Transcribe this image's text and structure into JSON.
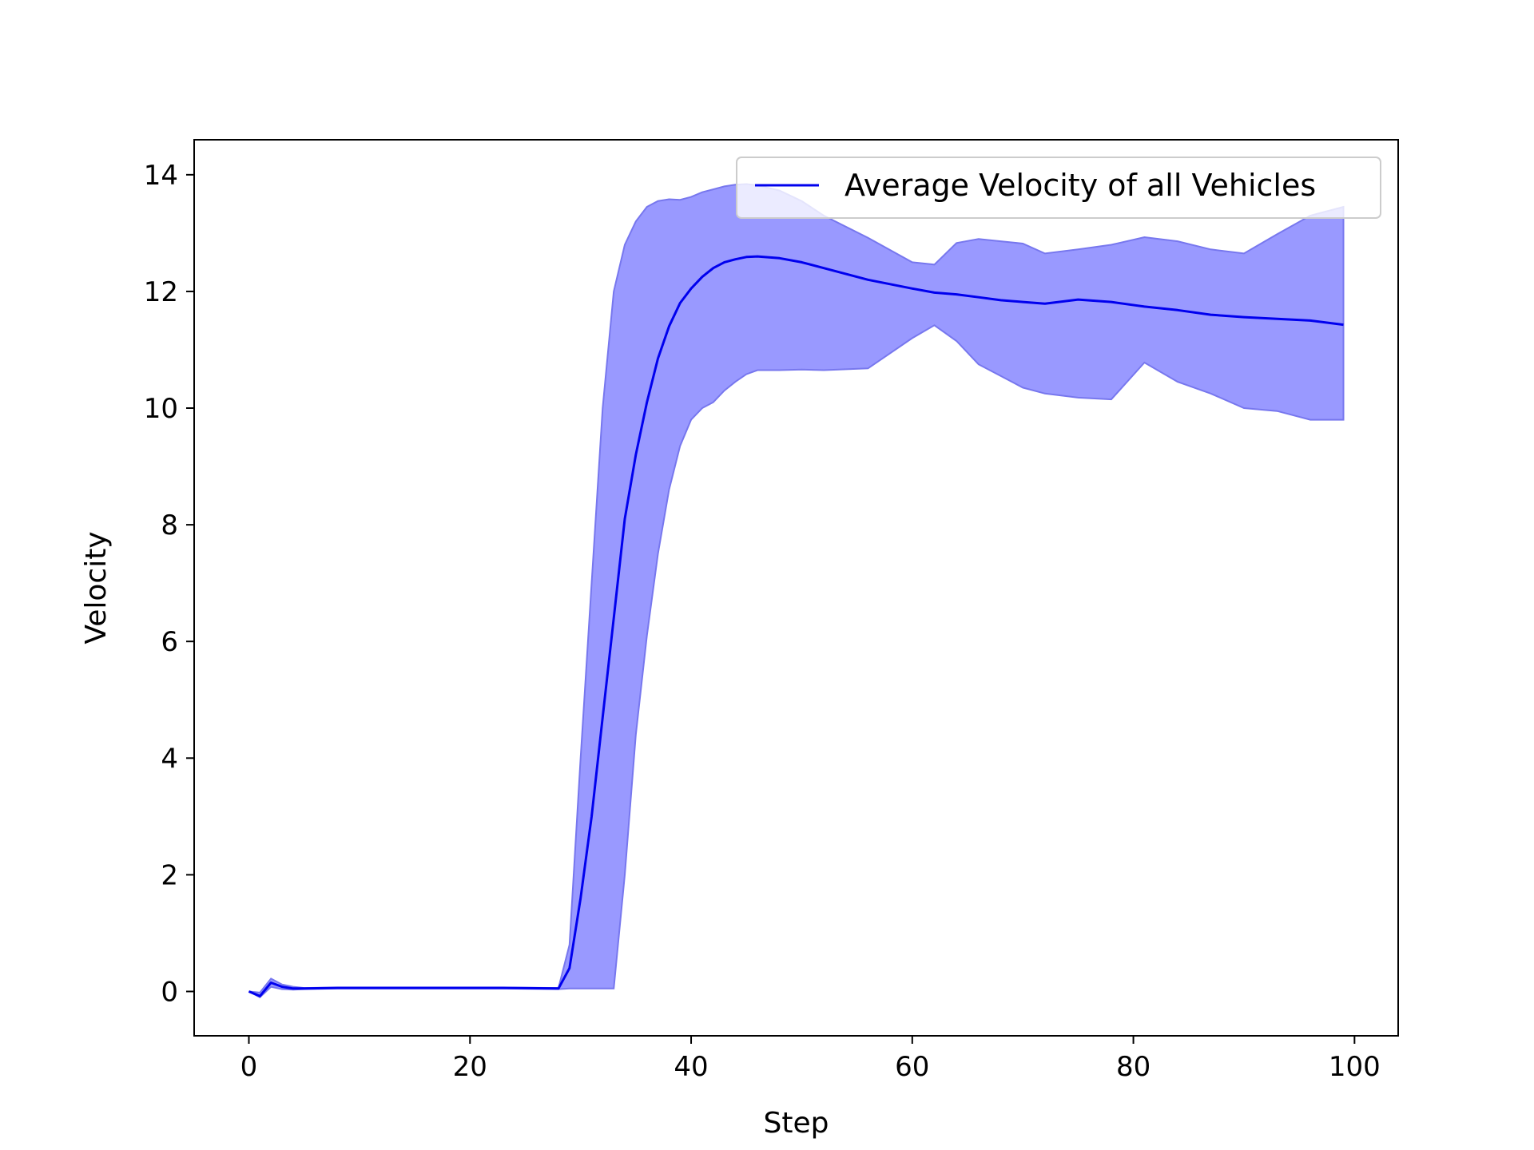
{
  "chart_data": {
    "type": "line",
    "title": "",
    "xlabel": "Step",
    "ylabel": "Velocity",
    "xlim": [
      -4.95,
      103.95
    ],
    "ylim": [
      -0.76,
      14.6
    ],
    "xticks": [
      0,
      20,
      40,
      60,
      80,
      100
    ],
    "yticks": [
      0,
      2,
      4,
      6,
      8,
      10,
      12,
      14
    ],
    "grid": false,
    "legend_position": "top-right",
    "colors": {
      "line": "#0000ee",
      "band": "#9999ff",
      "band_edge": "#7777ee",
      "axes": "#000000"
    },
    "series": [
      {
        "name": "Average Velocity of all Vehicles",
        "x": [
          0,
          1,
          2,
          3,
          4,
          5,
          8,
          15,
          23,
          28,
          29,
          30,
          31,
          32,
          33,
          34,
          35,
          36,
          37,
          38,
          39,
          40,
          41,
          42,
          43,
          44,
          45,
          46,
          48,
          50,
          52,
          56,
          60,
          62,
          64,
          66,
          68,
          70,
          72,
          75,
          78,
          81,
          84,
          87,
          90,
          93,
          96,
          99
        ],
        "y": [
          0.0,
          -0.08,
          0.15,
          0.08,
          0.05,
          0.05,
          0.06,
          0.06,
          0.06,
          0.05,
          0.4,
          1.6,
          3.0,
          4.7,
          6.4,
          8.1,
          9.2,
          10.1,
          10.85,
          11.4,
          11.8,
          12.05,
          12.25,
          12.4,
          12.5,
          12.55,
          12.59,
          12.6,
          12.57,
          12.5,
          12.4,
          12.2,
          12.05,
          11.98,
          11.95,
          11.9,
          11.85,
          11.82,
          11.79,
          11.86,
          11.82,
          11.74,
          11.68,
          11.6,
          11.56,
          11.53,
          11.5,
          11.43
        ],
        "band_upper": [
          0.0,
          -0.02,
          0.22,
          0.12,
          0.08,
          0.06,
          0.07,
          0.07,
          0.07,
          0.06,
          0.8,
          4.0,
          7.0,
          10.0,
          12.0,
          12.8,
          13.2,
          13.45,
          13.55,
          13.58,
          13.57,
          13.62,
          13.7,
          13.75,
          13.8,
          13.83,
          13.84,
          13.82,
          13.73,
          13.55,
          13.3,
          12.92,
          12.5,
          12.46,
          12.83,
          12.9,
          12.86,
          12.82,
          12.65,
          12.72,
          12.8,
          12.93,
          12.86,
          12.72,
          12.65,
          12.98,
          13.3,
          13.45
        ],
        "band_lower": [
          0.0,
          -0.1,
          0.08,
          0.04,
          0.03,
          0.04,
          0.05,
          0.05,
          0.05,
          0.04,
          0.05,
          0.05,
          0.05,
          0.05,
          0.05,
          2.0,
          4.4,
          6.1,
          7.5,
          8.6,
          9.35,
          9.8,
          10.0,
          10.1,
          10.3,
          10.45,
          10.58,
          10.65,
          10.65,
          10.66,
          10.65,
          10.68,
          11.2,
          11.42,
          11.15,
          10.75,
          10.55,
          10.35,
          10.25,
          10.18,
          10.15,
          10.78,
          10.45,
          10.25,
          10.0,
          9.95,
          9.8,
          9.8
        ]
      }
    ]
  }
}
